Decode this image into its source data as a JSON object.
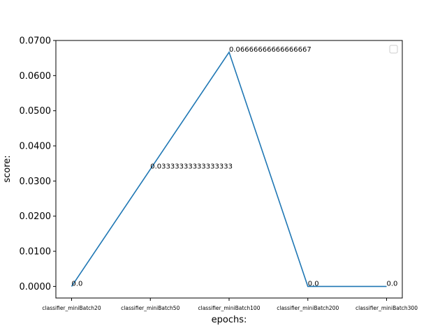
{
  "chart_data": {
    "type": "line",
    "categories": [
      "classifier_miniBatch20",
      "classifier_miniBatch50",
      "classifier_miniBatch100",
      "classifier_miniBatch200",
      "classifier_miniBatch300"
    ],
    "series": [
      {
        "values": [
          0.0,
          0.03333333333333333,
          0.06666666666666667,
          0.0,
          0.0
        ],
        "color": "#1f77b4"
      }
    ],
    "data_labels": [
      "0.0",
      "0.03333333333333333",
      "0.06666666666666667",
      "0.0",
      "0.0"
    ],
    "yticks": [
      "0.0000",
      "0.0100",
      "0.0200",
      "0.0300",
      "0.0400",
      "0.0500",
      "0.0600",
      "0.0700"
    ],
    "ytick_values": [
      0.0,
      0.01,
      0.02,
      0.03,
      0.04,
      0.05,
      0.06,
      0.07
    ],
    "xlabel": "epochs:",
    "ylabel": "score:",
    "ylim": [
      -0.0033,
      0.07
    ],
    "grid": false,
    "legend": "upper-right (empty)"
  }
}
